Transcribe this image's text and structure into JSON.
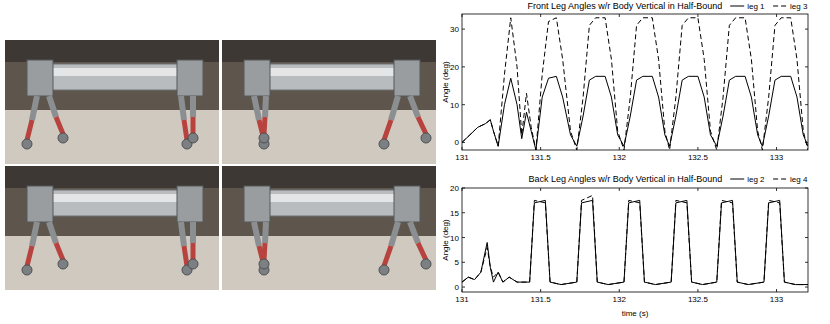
{
  "chart_data": [
    {
      "type": "line",
      "title": "Front Leg Angles w/r Body Vertical in Half-Bound",
      "ylabel": "Angle (deg)",
      "x": [
        131,
        131.05,
        131.1,
        131.15,
        131.18,
        131.2,
        131.23,
        131.27,
        131.31,
        131.35,
        131.38,
        131.41,
        131.44,
        131.47,
        131.51,
        131.55,
        131.6,
        131.64,
        131.69,
        131.73,
        131.77,
        131.81,
        131.85,
        131.91,
        131.95,
        131.99,
        132.03,
        132.07,
        132.11,
        132.15,
        132.21,
        132.25,
        132.29,
        132.32,
        132.36,
        132.4,
        132.44,
        132.5,
        132.54,
        132.58,
        132.62,
        132.66,
        132.7,
        132.74,
        132.8,
        132.84,
        132.88,
        132.91,
        132.95,
        132.99,
        133.03,
        133.09,
        133.13,
        133.17,
        133.2
      ],
      "series": [
        {
          "name": "leg 1",
          "color": "#000000",
          "line_style": "solid",
          "values": [
            0,
            2,
            4,
            5,
            6,
            3,
            -1,
            10,
            17,
            10,
            1,
            8,
            3,
            -2,
            12,
            17,
            17.5,
            12,
            2,
            -1,
            7,
            16.5,
            17.5,
            17.5,
            12,
            2,
            -1,
            7,
            16.5,
            17.5,
            17.5,
            12,
            2,
            -1,
            7,
            16.5,
            17.5,
            17.5,
            12,
            2,
            -1,
            7,
            16.5,
            17.5,
            17.5,
            12,
            2,
            -1,
            7,
            16.5,
            17.5,
            17.5,
            12,
            2,
            -1
          ]
        },
        {
          "name": "leg 3",
          "color": "#000000",
          "line_style": "dashed",
          "values": [
            0,
            2,
            4,
            5,
            6,
            3,
            -1,
            18,
            33,
            20,
            2,
            13,
            4,
            -2,
            18,
            32,
            33,
            22,
            3,
            -2,
            12,
            31,
            33,
            33,
            22,
            3,
            -2,
            12,
            31,
            33,
            33,
            22,
            3,
            -2,
            12,
            31,
            33,
            33,
            22,
            3,
            -2,
            12,
            31,
            33,
            33,
            22,
            3,
            -2,
            12,
            31,
            33,
            33,
            22,
            3,
            -2
          ]
        }
      ],
      "xlim": [
        131,
        133.2
      ],
      "xticks": [
        131,
        131.5,
        132,
        132.5,
        133
      ],
      "ylim": [
        -2,
        34
      ],
      "yticks": [
        0,
        10,
        20,
        30
      ],
      "grid": false,
      "legend": "top"
    },
    {
      "type": "line",
      "title": "Back Leg Angles w/r Body Vertical in Half-Bound",
      "xlabel": "time (s)",
      "ylabel": "Angle (deg)",
      "x": [
        131,
        131.04,
        131.08,
        131.12,
        131.16,
        131.18,
        131.2,
        131.23,
        131.26,
        131.3,
        131.35,
        131.4,
        131.43,
        131.46,
        131.53,
        131.56,
        131.63,
        131.73,
        131.76,
        131.83,
        131.86,
        131.93,
        132.03,
        132.06,
        132.13,
        132.16,
        132.23,
        132.33,
        132.36,
        132.43,
        132.46,
        132.53,
        132.62,
        132.65,
        132.72,
        132.75,
        132.82,
        132.92,
        132.95,
        133.02,
        133.05,
        133.12,
        133.2
      ],
      "series": [
        {
          "name": "leg 2",
          "color": "#000000",
          "line_style": "solid",
          "values": [
            1,
            2,
            1.5,
            3,
            9,
            4,
            1,
            3,
            1,
            2,
            1,
            1,
            1,
            17,
            17.5,
            1,
            0.5,
            1,
            17,
            17.5,
            1,
            0.5,
            1,
            17,
            17.5,
            1,
            0.5,
            1,
            17,
            17.5,
            1,
            0.5,
            1,
            17,
            17.5,
            1,
            0.5,
            1,
            17,
            17.5,
            1,
            0.5,
            0.5
          ]
        },
        {
          "name": "leg 4",
          "color": "#000000",
          "line_style": "dashed",
          "values": [
            1,
            2,
            1.5,
            3,
            8,
            4,
            2,
            3,
            1,
            2,
            1,
            1,
            1,
            17.5,
            17,
            1,
            0.5,
            1,
            17.5,
            18.5,
            1,
            0.5,
            1,
            17.5,
            17,
            1,
            0.5,
            1,
            17.5,
            17,
            1,
            0.5,
            1,
            17.5,
            17,
            1,
            0.5,
            1,
            17.5,
            17,
            1,
            0.5,
            0.5
          ]
        }
      ],
      "xlim": [
        131,
        133.2
      ],
      "xticks": [
        131,
        131.5,
        132,
        132.5,
        133
      ],
      "ylim": [
        -1,
        20
      ],
      "yticks": [
        0,
        5,
        10,
        15,
        20
      ],
      "grid": false,
      "legend": "top"
    }
  ]
}
